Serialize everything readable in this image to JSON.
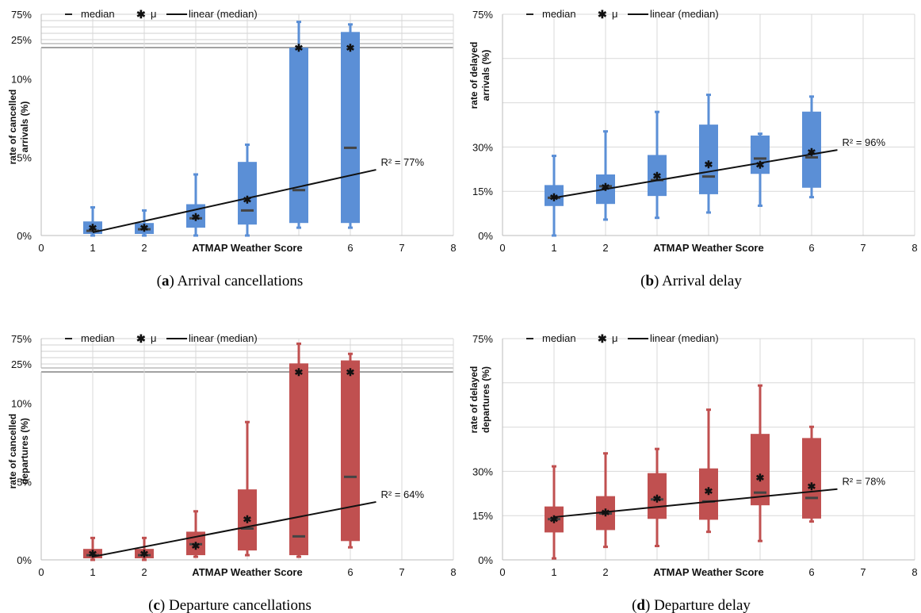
{
  "chart_data": [
    {
      "id": "a",
      "type": "box",
      "caption_letter": "a",
      "caption_text": "Arrival cancellations",
      "color": "#5b8fd6",
      "ylabel_lines": [
        "rate of cancelled",
        "arrivals (%)"
      ],
      "xlabel": "ATMAP Weather Score",
      "xlim": [
        0,
        8
      ],
      "x_ticks": [
        "0",
        "1",
        "2",
        "",
        "",
        "",
        "6",
        "7",
        "8"
      ],
      "broken_axis": true,
      "y_ticks_lower": [
        {
          "v": 0,
          "label": "0%"
        },
        {
          "v": 5,
          "label": "5%"
        },
        {
          "v": 10,
          "label": "10%"
        }
      ],
      "y_ticks_upper": [
        {
          "v": 25,
          "label": "25%"
        },
        {
          "v": 75,
          "label": "75%"
        }
      ],
      "legend": {
        "median": "median",
        "mean": "μ",
        "linear": "linear (median)"
      },
      "r2_label": "R² = 77%",
      "trend": {
        "x0": 1,
        "y0": 0.2,
        "x1": 6.5,
        "y1": 4.2
      },
      "boxes": [
        {
          "x": 1,
          "min": 0,
          "q1": 0.1,
          "median": 0.3,
          "q3": 0.9,
          "max": 1.8,
          "mean": 0.5
        },
        {
          "x": 2,
          "min": 0,
          "q1": 0.1,
          "median": 0.4,
          "q3": 0.8,
          "max": 1.6,
          "mean": 0.5
        },
        {
          "x": 3,
          "min": 0,
          "q1": 0.5,
          "median": 1.1,
          "q3": 2.0,
          "max": 3.9,
          "mean": 1.2
        },
        {
          "x": 4,
          "min": 0,
          "q1": 0.7,
          "median": 1.6,
          "q3": 4.7,
          "max": 5.8,
          "mean": 2.3
        },
        {
          "x": 5,
          "min": 0.5,
          "q1": 0.8,
          "median": 2.9,
          "q3": 25.0,
          "max": 60,
          "mean": 13.0
        },
        {
          "x": 6,
          "min": 0.5,
          "q1": 0.8,
          "median": 5.6,
          "q3": 40,
          "max": 55,
          "mean": 15.6
        }
      ]
    },
    {
      "id": "b",
      "type": "box",
      "caption_letter": "b",
      "caption_text": "Arrival delay",
      "color": "#5b8fd6",
      "ylabel_lines": [
        "rate of delayed",
        "arrivals (%)"
      ],
      "xlabel": "ATMAP Weather Score",
      "xlim": [
        0,
        8
      ],
      "x_ticks": [
        "0",
        "1",
        "2",
        "",
        "",
        "",
        "6",
        "7",
        "8"
      ],
      "broken_axis": false,
      "ylim": [
        0,
        75
      ],
      "y_ticks": [
        {
          "v": 0,
          "label": "0%"
        },
        {
          "v": 15,
          "label": "15%"
        },
        {
          "v": 30,
          "label": "30%"
        },
        {
          "v": 45,
          "label": ""
        },
        {
          "v": 60,
          "label": ""
        },
        {
          "v": 75,
          "label": "75%"
        }
      ],
      "legend": {
        "median": "median",
        "mean": "μ",
        "linear": "linear (median)"
      },
      "r2_label": "R² = 96%",
      "trend": {
        "x0": 1,
        "y0": 12.8,
        "x1": 6.5,
        "y1": 29.0
      },
      "boxes": [
        {
          "x": 1,
          "min": 0,
          "q1": 10,
          "median": 12.8,
          "q3": 17.1,
          "max": 27,
          "mean": 13.1
        },
        {
          "x": 2,
          "min": 5.4,
          "q1": 10.7,
          "median": 16.7,
          "q3": 20.7,
          "max": 35.3,
          "mean": 16.5
        },
        {
          "x": 3,
          "min": 6,
          "q1": 13.4,
          "median": 18.8,
          "q3": 27.3,
          "max": 41.9,
          "mean": 20.3
        },
        {
          "x": 4,
          "min": 7.8,
          "q1": 14,
          "median": 20,
          "q3": 37.6,
          "max": 47.7,
          "mean": 24.2
        },
        {
          "x": 5,
          "min": 10.1,
          "q1": 20.9,
          "median": 26.1,
          "q3": 33.9,
          "max": 34.5,
          "mean": 24.1
        },
        {
          "x": 6,
          "min": 13,
          "q1": 16.2,
          "median": 26.5,
          "q3": 42,
          "max": 47.1,
          "mean": 28.3
        }
      ]
    },
    {
      "id": "c",
      "type": "box",
      "caption_letter": "c",
      "caption_text": "Departure cancellations",
      "color": "#c05050",
      "ylabel_lines": [
        "rate of cancelled",
        "departures (%)"
      ],
      "xlabel": "ATMAP Weather Score",
      "xlim": [
        0,
        8
      ],
      "x_ticks": [
        "0",
        "1",
        "2",
        "",
        "",
        "",
        "6",
        "7",
        "8"
      ],
      "broken_axis": true,
      "y_ticks_lower": [
        {
          "v": 0,
          "label": "0%"
        },
        {
          "v": 5,
          "label": "5%"
        },
        {
          "v": 10,
          "label": "10%"
        }
      ],
      "y_ticks_upper": [
        {
          "v": 25,
          "label": "25%"
        },
        {
          "v": 75,
          "label": "75%"
        }
      ],
      "legend": {
        "median": "median",
        "mean": "μ",
        "linear": "linear (median)"
      },
      "r2_label": "R² = 64%",
      "trend": {
        "x0": 1,
        "y0": 0.2,
        "x1": 6.5,
        "y1": 3.7
      },
      "boxes": [
        {
          "x": 1,
          "min": 0,
          "q1": 0.1,
          "median": 0.3,
          "q3": 0.7,
          "max": 1.4,
          "mean": 0.4
        },
        {
          "x": 2,
          "min": 0,
          "q1": 0.1,
          "median": 0.3,
          "q3": 0.7,
          "max": 1.4,
          "mean": 0.4
        },
        {
          "x": 3,
          "min": 0.2,
          "q1": 0.3,
          "median": 1.0,
          "q3": 1.8,
          "max": 3.1,
          "mean": 0.9
        },
        {
          "x": 4,
          "min": 0.3,
          "q1": 0.6,
          "median": 2.0,
          "q3": 4.5,
          "max": 8.8,
          "mean": 2.6
        },
        {
          "x": 5,
          "min": 0.2,
          "q1": 0.3,
          "median": 1.5,
          "q3": 26,
          "max": 65,
          "mean": 14.0
        },
        {
          "x": 6,
          "min": 0.8,
          "q1": 1.2,
          "median": 5.3,
          "q3": 32,
          "max": 45,
          "mean": 13.4
        }
      ]
    },
    {
      "id": "d",
      "type": "box",
      "caption_letter": "d",
      "caption_text": "Departure delay",
      "color": "#c05050",
      "ylabel_lines": [
        "rate of delayed",
        "departures (%)"
      ],
      "xlabel": "ATMAP Weather Score",
      "xlim": [
        0,
        8
      ],
      "x_ticks": [
        "0",
        "1",
        "2",
        "",
        "",
        "",
        "6",
        "7",
        "8"
      ],
      "broken_axis": false,
      "ylim": [
        0,
        75
      ],
      "y_ticks": [
        {
          "v": 0,
          "label": "0%"
        },
        {
          "v": 15,
          "label": "15%"
        },
        {
          "v": 30,
          "label": "30%"
        },
        {
          "v": 45,
          "label": ""
        },
        {
          "v": 60,
          "label": ""
        },
        {
          "v": 75,
          "label": "75%"
        }
      ],
      "legend": {
        "median": "median",
        "mean": "μ",
        "linear": "linear (median)"
      },
      "r2_label": "R² = 78%",
      "trend": {
        "x0": 1,
        "y0": 14.5,
        "x1": 6.5,
        "y1": 24.0
      },
      "boxes": [
        {
          "x": 1,
          "min": 0.5,
          "q1": 9.3,
          "median": 13.8,
          "q3": 18.1,
          "max": 31.7,
          "mean": 13.8
        },
        {
          "x": 2,
          "min": 4.4,
          "q1": 10.1,
          "median": 15.7,
          "q3": 21.6,
          "max": 36.1,
          "mean": 16.1
        },
        {
          "x": 3,
          "min": 4.7,
          "q1": 13.9,
          "median": 20.5,
          "q3": 29.4,
          "max": 37.6,
          "mean": 20.9
        },
        {
          "x": 4,
          "min": 9.5,
          "q1": 13.6,
          "median": 19.8,
          "q3": 31,
          "max": 50.9,
          "mean": 23.4
        },
        {
          "x": 5,
          "min": 6.4,
          "q1": 18.5,
          "median": 22.8,
          "q3": 42.7,
          "max": 59.1,
          "mean": 28
        },
        {
          "x": 6,
          "min": 13,
          "q1": 14,
          "median": 21,
          "q3": 41.3,
          "max": 45.1,
          "mean": 25
        }
      ]
    }
  ]
}
